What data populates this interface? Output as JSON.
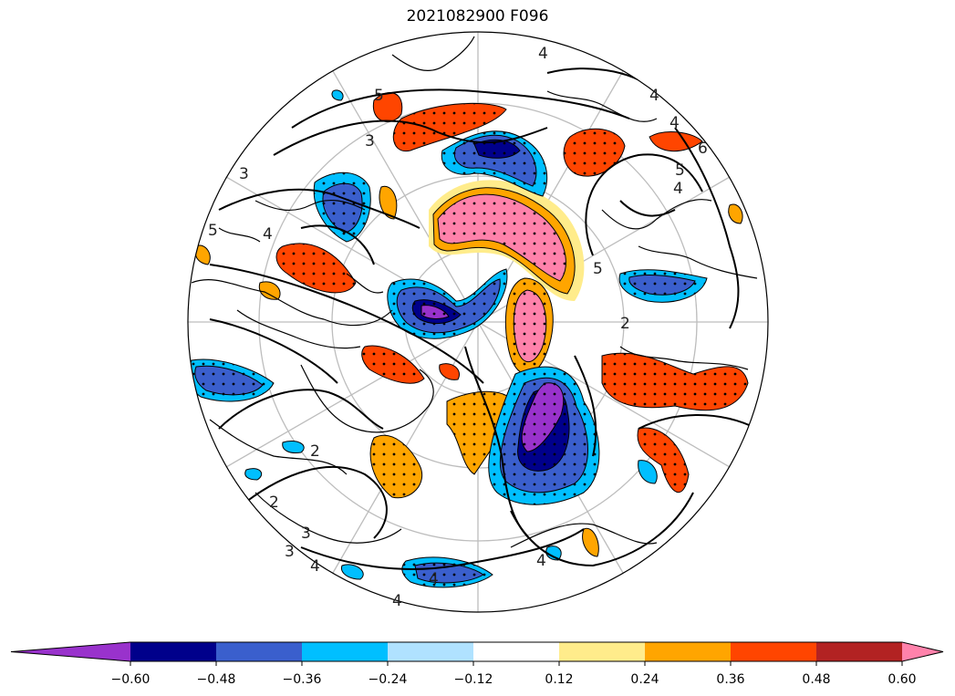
{
  "title": "2021082900 F096",
  "colorbar": {
    "colors": [
      "#9932cc",
      "#00008b",
      "#3a5fcd",
      "#00bfff",
      "#b0e2ff",
      "#ffffff",
      "#ffec8b",
      "#ffa500",
      "#ff4500",
      "#b22222",
      "#ff82ab"
    ],
    "tick_labels": [
      "−0.60",
      "−0.48",
      "−0.36",
      "−0.24",
      "−0.12",
      "0.12",
      "0.24",
      "0.36",
      "0.48",
      "0.60"
    ],
    "extend": "both"
  },
  "contour_labels": [
    "4",
    "5",
    "3",
    "4",
    "4",
    "5",
    "4",
    "6",
    "5",
    "3",
    "2",
    "4",
    "4",
    "3",
    "2",
    "4",
    "2",
    "4",
    "3",
    "4",
    "5"
  ],
  "map": {
    "projection": "north-polar-stereographic",
    "anomaly_regions": [
      {
        "name": "pink-north",
        "level": 0.6
      },
      {
        "name": "pink-center",
        "level": 0.6
      },
      {
        "name": "purple-southeast",
        "level": -0.6
      },
      {
        "name": "purple-center",
        "level": -0.6
      }
    ]
  }
}
